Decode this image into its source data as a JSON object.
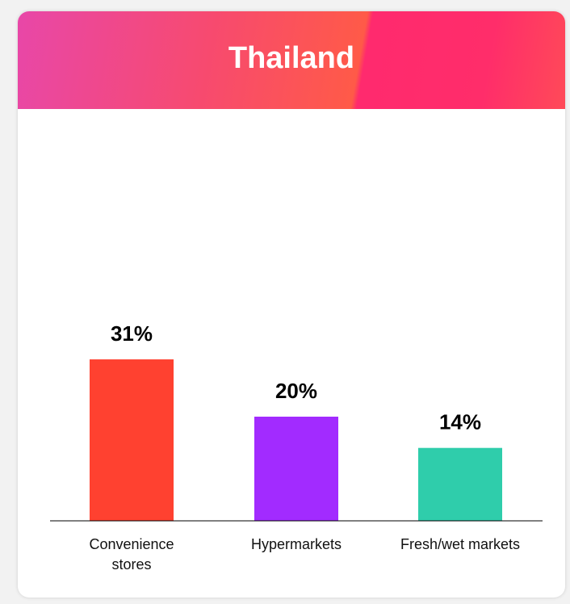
{
  "chart_data": {
    "type": "bar",
    "title": "Thailand",
    "categories": [
      "Convenience stores",
      "Hypermarkets",
      "Fresh/wet markets"
    ],
    "values": [
      31,
      20,
      14
    ],
    "value_labels": [
      "31%",
      "20%",
      "14%"
    ],
    "colors": [
      "#ff4130",
      "#a22bff",
      "#2fcdab"
    ]
  }
}
